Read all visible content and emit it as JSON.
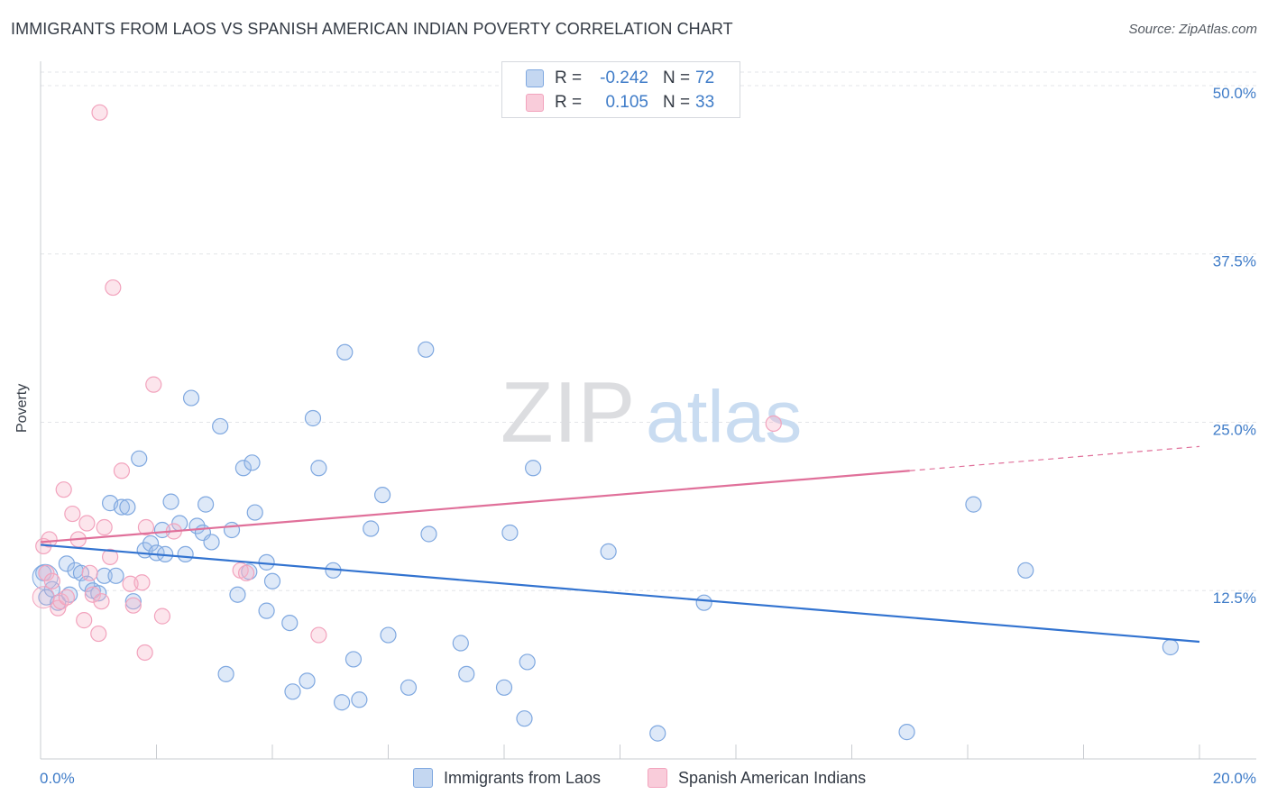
{
  "title": "IMMIGRANTS FROM LAOS VS SPANISH AMERICAN INDIAN POVERTY CORRELATION CHART",
  "source": "Source: ZipAtlas.com",
  "watermark": {
    "zip": "ZIP",
    "atlas": "atlas"
  },
  "legend": {
    "rows": [
      {
        "r_label": "R =",
        "r_value": "-0.242",
        "n_label": "N =",
        "n_value": "72"
      },
      {
        "r_label": "R =",
        "r_value": "0.105",
        "n_label": "N =",
        "n_value": "33"
      }
    ]
  },
  "bottom_legend": [
    "Immigrants from Laos",
    "Spanish American Indians"
  ],
  "chart_data": {
    "type": "scatter",
    "title": "IMMIGRANTS FROM LAOS VS SPANISH AMERICAN INDIAN POVERTY CORRELATION CHART",
    "xlabel": "",
    "ylabel": "Poverty",
    "xlim": [
      0,
      20
    ],
    "ylim": [
      0,
      51
    ],
    "x_tick_labels": [
      "0.0%",
      "20.0%"
    ],
    "y_ticks": [
      12.5,
      25.0,
      37.5,
      50.0
    ],
    "y_tick_labels": [
      "12.5%",
      "25.0%",
      "37.5%",
      "50.0%"
    ],
    "grid": true,
    "legend_position": "top-center",
    "colors": {
      "series1": "#7fa8e0",
      "series1_line": "#3273d0",
      "series2": "#f2a3bd",
      "series2_line": "#e0709a",
      "tick_label": "#3f7cc8"
    },
    "series": [
      {
        "name": "Immigrants from Laos",
        "points": [
          [
            0.1,
            12.0
          ],
          [
            0.2,
            12.6
          ],
          [
            0.3,
            11.6
          ],
          [
            0.45,
            14.5
          ],
          [
            0.5,
            12.2
          ],
          [
            0.6,
            14.0
          ],
          [
            0.7,
            13.8
          ],
          [
            0.8,
            13.0
          ],
          [
            0.9,
            12.5
          ],
          [
            1.0,
            12.3
          ],
          [
            1.1,
            13.6
          ],
          [
            1.2,
            19.0
          ],
          [
            1.3,
            13.6
          ],
          [
            1.4,
            18.7
          ],
          [
            1.5,
            18.7
          ],
          [
            1.6,
            11.7
          ],
          [
            1.7,
            22.3
          ],
          [
            1.8,
            15.5
          ],
          [
            1.9,
            16.0
          ],
          [
            2.0,
            15.3
          ],
          [
            2.1,
            17.0
          ],
          [
            2.15,
            15.2
          ],
          [
            2.25,
            19.1
          ],
          [
            2.4,
            17.5
          ],
          [
            2.5,
            15.2
          ],
          [
            2.6,
            26.8
          ],
          [
            2.7,
            17.3
          ],
          [
            2.8,
            16.8
          ],
          [
            2.85,
            18.9
          ],
          [
            2.95,
            16.1
          ],
          [
            3.1,
            24.7
          ],
          [
            3.2,
            6.3
          ],
          [
            3.3,
            17.0
          ],
          [
            3.4,
            12.2
          ],
          [
            3.5,
            21.6
          ],
          [
            3.6,
            13.9
          ],
          [
            3.65,
            22.0
          ],
          [
            3.7,
            18.3
          ],
          [
            3.9,
            11.0
          ],
          [
            3.9,
            14.6
          ],
          [
            4.0,
            13.2
          ],
          [
            4.3,
            10.1
          ],
          [
            4.35,
            5.0
          ],
          [
            4.6,
            5.8
          ],
          [
            4.7,
            25.3
          ],
          [
            4.8,
            21.6
          ],
          [
            5.05,
            14.0
          ],
          [
            5.2,
            4.2
          ],
          [
            5.25,
            30.2
          ],
          [
            5.4,
            7.4
          ],
          [
            5.5,
            4.4
          ],
          [
            5.7,
            17.1
          ],
          [
            5.9,
            19.6
          ],
          [
            6.0,
            9.2
          ],
          [
            6.35,
            5.3
          ],
          [
            6.65,
            30.4
          ],
          [
            6.7,
            16.7
          ],
          [
            7.25,
            8.6
          ],
          [
            7.35,
            6.3
          ],
          [
            8.0,
            5.3
          ],
          [
            8.1,
            16.8
          ],
          [
            8.35,
            3.0
          ],
          [
            8.4,
            7.2
          ],
          [
            8.5,
            21.6
          ],
          [
            9.8,
            15.4
          ],
          [
            10.65,
            1.9
          ],
          [
            11.45,
            11.6
          ],
          [
            14.95,
            2.0
          ],
          [
            16.1,
            18.9
          ],
          [
            17.0,
            14.0
          ],
          [
            19.5,
            8.3
          ],
          [
            0.05,
            13.8
          ]
        ],
        "trend": {
          "x": [
            0.0,
            20.0
          ],
          "y": [
            15.9,
            8.7
          ]
        }
      },
      {
        "name": "Spanish American Indians",
        "points": [
          [
            0.05,
            15.8
          ],
          [
            0.1,
            13.8
          ],
          [
            0.15,
            16.3
          ],
          [
            0.2,
            13.2
          ],
          [
            0.3,
            11.2
          ],
          [
            0.35,
            11.7
          ],
          [
            0.4,
            20.0
          ],
          [
            0.45,
            12.0
          ],
          [
            0.55,
            18.2
          ],
          [
            0.65,
            16.3
          ],
          [
            0.75,
            10.3
          ],
          [
            0.8,
            17.5
          ],
          [
            0.85,
            13.8
          ],
          [
            0.9,
            12.2
          ],
          [
            1.0,
            9.3
          ],
          [
            1.05,
            11.7
          ],
          [
            1.1,
            17.2
          ],
          [
            1.2,
            15.0
          ],
          [
            1.25,
            35.0
          ],
          [
            1.4,
            21.4
          ],
          [
            1.55,
            13.0
          ],
          [
            1.6,
            11.4
          ],
          [
            1.75,
            13.1
          ],
          [
            1.8,
            7.9
          ],
          [
            1.82,
            17.2
          ],
          [
            1.02,
            48.0
          ],
          [
            1.95,
            27.8
          ],
          [
            2.1,
            10.6
          ],
          [
            2.3,
            16.9
          ],
          [
            3.45,
            14.0
          ],
          [
            3.55,
            13.8
          ],
          [
            4.8,
            9.2
          ],
          [
            12.65,
            24.9
          ]
        ],
        "trend": {
          "x": [
            0.0,
            15.0
          ],
          "y": [
            16.1,
            21.4
          ]
        },
        "trend_dashed": {
          "x": [
            15.0,
            20.0
          ],
          "y": [
            21.4,
            23.2
          ]
        }
      }
    ]
  }
}
